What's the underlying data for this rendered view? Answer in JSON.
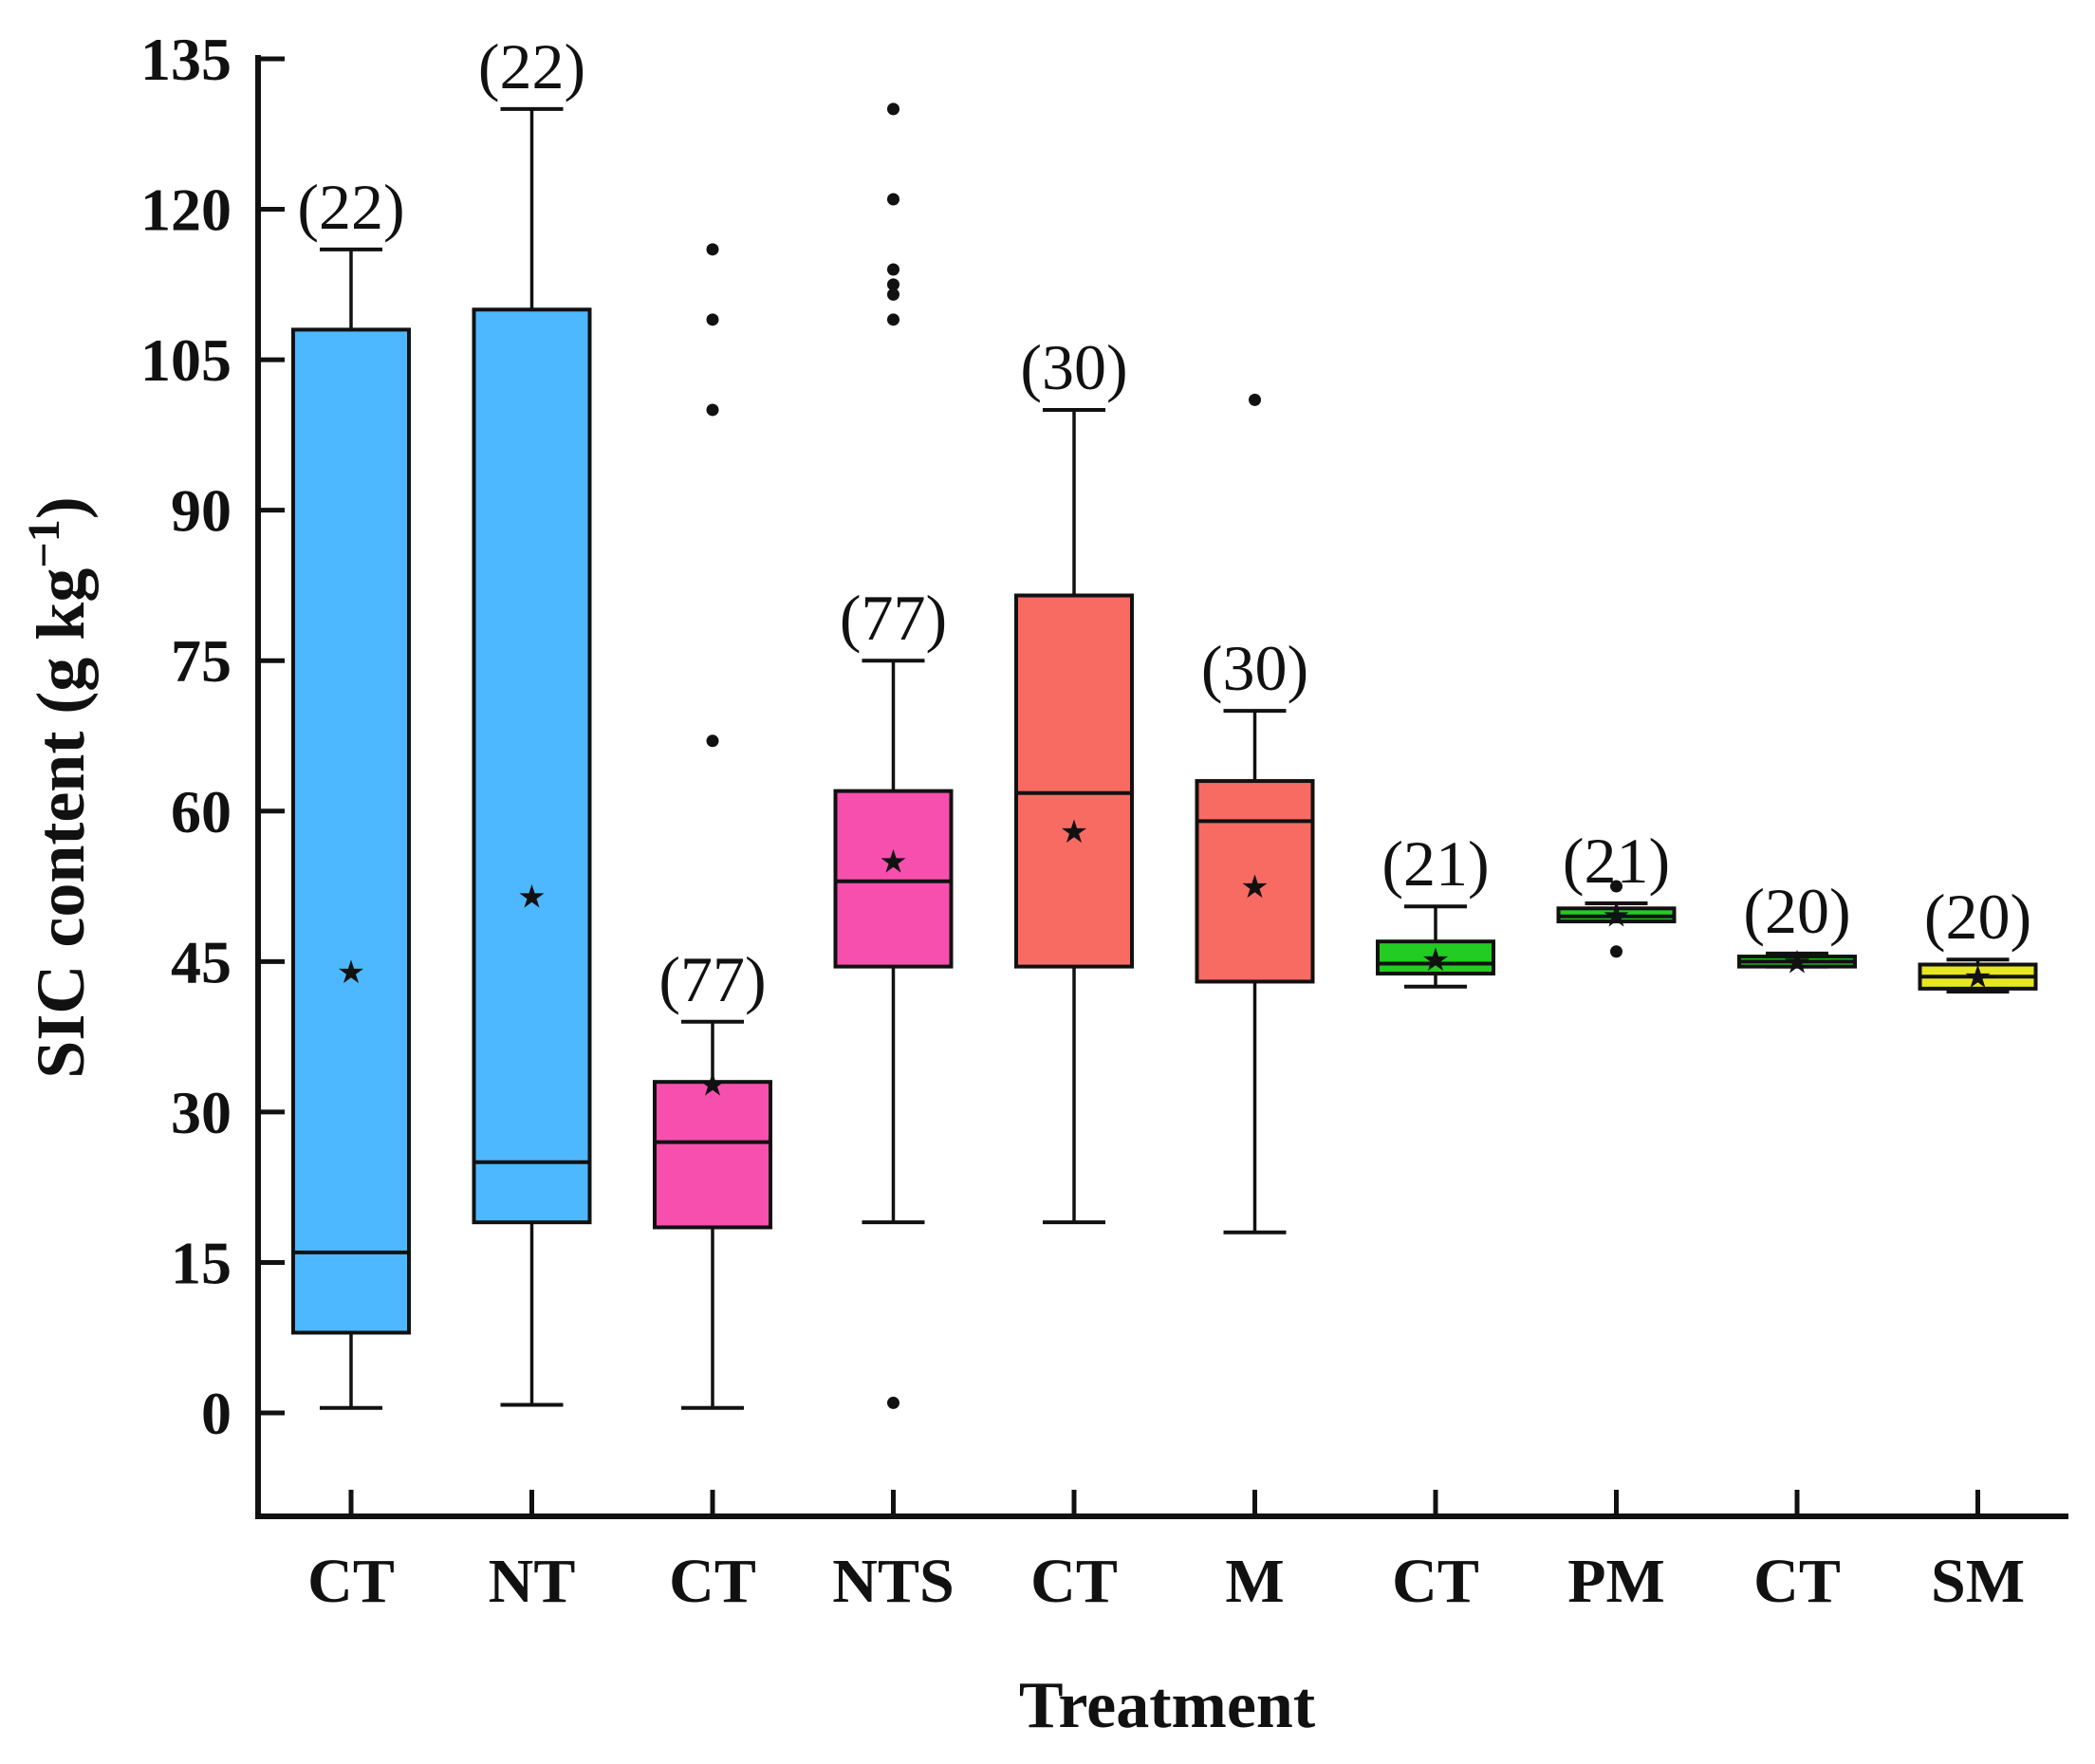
{
  "chart_data": {
    "type": "box",
    "xlabel": "Treatment",
    "ylabel": {
      "main": "SIC content (g kg",
      "sup": "−1",
      "close": ")"
    },
    "ylim": [
      -10,
      135
    ],
    "yticks": [
      0,
      15,
      30,
      45,
      60,
      75,
      90,
      105,
      120,
      135
    ],
    "grid": false,
    "categories": [
      "CT",
      "NT",
      "CT",
      "NTS",
      "CT",
      "M",
      "CT",
      "PM",
      "CT",
      "SM"
    ],
    "boxes": [
      {
        "label": "CT",
        "n_label": "(22)",
        "color": "#4db8ff",
        "whisker_low": 0.5,
        "q1": 8,
        "median": 16,
        "q3": 108,
        "whisker_high": 116,
        "mean": 44,
        "outliers": []
      },
      {
        "label": "NT",
        "n_label": "(22)",
        "color": "#4db8ff",
        "whisker_low": 0.8,
        "q1": 19,
        "median": 25,
        "q3": 110,
        "whisker_high": 130,
        "mean": 51.5,
        "outliers": []
      },
      {
        "label": "CT",
        "n_label": "(77)",
        "color": "#f74fae",
        "whisker_low": 0.5,
        "q1": 18.5,
        "median": 27,
        "q3": 33,
        "whisker_high": 39,
        "mean": 32.8,
        "outliers": [
          67,
          100,
          109,
          116
        ]
      },
      {
        "label": "NTS",
        "n_label": "(77)",
        "color": "#f74fae",
        "whisker_low": 19,
        "q1": 44.5,
        "median": 53,
        "q3": 62,
        "whisker_high": 75,
        "mean": 55,
        "outliers": [
          1,
          109,
          111.5,
          112.5,
          114,
          121,
          130
        ]
      },
      {
        "label": "CT",
        "n_label": "(30)",
        "color": "#f86b63",
        "whisker_low": 19,
        "q1": 44.5,
        "median": 61.8,
        "q3": 81.5,
        "whisker_high": 100,
        "mean": 58,
        "outliers": []
      },
      {
        "label": "M",
        "n_label": "(30)",
        "color": "#f86b63",
        "whisker_low": 18,
        "q1": 43,
        "median": 59,
        "q3": 63,
        "whisker_high": 70,
        "mean": 52.5,
        "outliers": [
          101
        ]
      },
      {
        "label": "CT",
        "n_label": "(21)",
        "color": "#22cc22",
        "whisker_low": 42.5,
        "q1": 43.8,
        "median": 44.8,
        "q3": 47,
        "whisker_high": 50.5,
        "mean": 45.2,
        "outliers": []
      },
      {
        "label": "PM",
        "n_label": "(21)",
        "color": "#22cc22",
        "whisker_low": 49,
        "q1": 49,
        "median": 49.5,
        "q3": 50.3,
        "whisker_high": 50.8,
        "mean": 49.6,
        "outliers": [
          46,
          52.5
        ]
      },
      {
        "label": "CT",
        "n_label": "(20)",
        "color": "#22cc22",
        "whisker_low": 44.5,
        "q1": 44.5,
        "median": 45,
        "q3": 45.5,
        "whisker_high": 45.8,
        "mean": 45,
        "outliers": []
      },
      {
        "label": "SM",
        "n_label": "(20)",
        "color": "#e6e622",
        "whisker_low": 42,
        "q1": 42.3,
        "median": 43.5,
        "q3": 44.7,
        "whisker_high": 45.2,
        "mean": 43.5,
        "outliers": []
      }
    ]
  }
}
